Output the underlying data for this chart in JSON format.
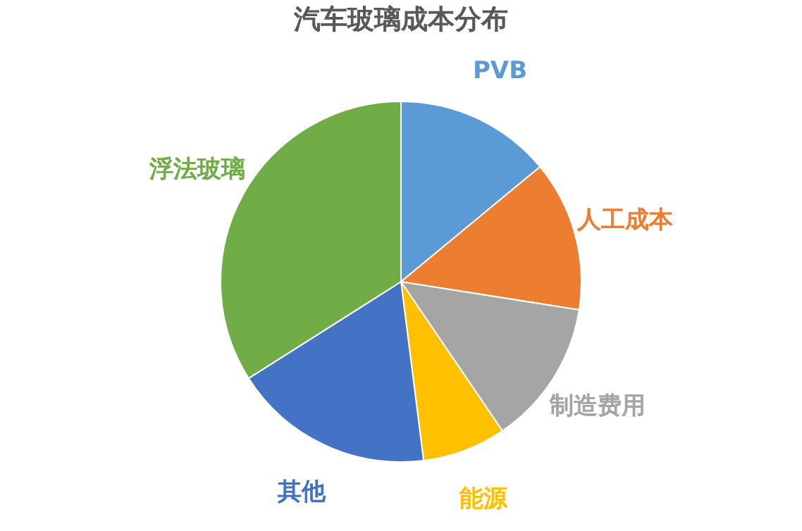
{
  "chart_data": {
    "type": "pie",
    "title": "汽车玻璃成本分布",
    "categories": [
      "PVB",
      "人工成本",
      "制造费用",
      "能源",
      "其他",
      "浮法玻璃"
    ],
    "values": [
      14,
      13.5,
      13,
      7.5,
      18,
      34
    ],
    "colors": [
      "#5b9bd5",
      "#ed7d31",
      "#a5a5a5",
      "#ffc000",
      "#4472c4",
      "#70ad47"
    ],
    "legend": false
  }
}
